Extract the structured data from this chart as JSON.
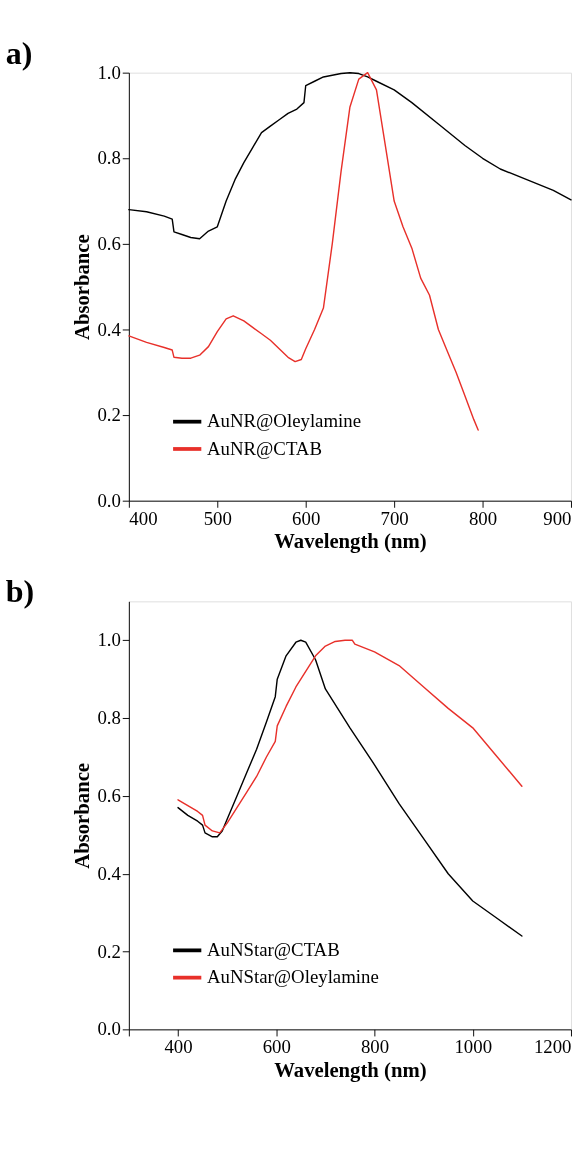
{
  "chart_data": [
    {
      "type": "line",
      "title": "a)",
      "xlabel": "Wavelength (nm)",
      "ylabel": "Absorbance",
      "legend": "bottom",
      "marker": "none",
      "line_style": "solid",
      "grid": false,
      "xlim": [
        400,
        900
      ],
      "xticks": [
        400,
        500,
        600,
        700,
        800,
        900
      ],
      "ylim": [
        0,
        1.0
      ],
      "yticks": [
        {
          "value": 0,
          "label": "0.0"
        },
        {
          "value": 0.2,
          "label": "0.2"
        },
        {
          "value": 0.4,
          "label": "0.4"
        },
        {
          "value": 0.6,
          "label": "0.6"
        },
        {
          "value": 0.8,
          "label": "0.8"
        },
        {
          "value": 1.0,
          "label": "1.0"
        }
      ],
      "series": [
        {
          "name": "AuNR@Oleylamine",
          "color": "#000000",
          "x": [
            400,
            420,
            440,
            449,
            451,
            460,
            470,
            480,
            490,
            500,
            510,
            520,
            530,
            540,
            550,
            560,
            570,
            580,
            590,
            598,
            600,
            610,
            620,
            640,
            650,
            660,
            670,
            680,
            700,
            720,
            750,
            780,
            800,
            820,
            850,
            880,
            900
          ],
          "values": [
            0.68,
            0.675,
            0.665,
            0.658,
            0.628,
            0.622,
            0.615,
            0.612,
            0.63,
            0.64,
            0.7,
            0.75,
            0.79,
            0.825,
            0.86,
            0.875,
            0.89,
            0.905,
            0.915,
            0.93,
            0.97,
            0.98,
            0.99,
            0.998,
            1.0,
            0.998,
            0.99,
            0.98,
            0.96,
            0.93,
            0.88,
            0.83,
            0.8,
            0.775,
            0.75,
            0.725,
            0.703
          ]
        },
        {
          "name": "AuNR@CTAB",
          "color": "#e8302a",
          "x": [
            400,
            420,
            440,
            449,
            451,
            460,
            470,
            480,
            490,
            500,
            510,
            518,
            530,
            540,
            550,
            560,
            570,
            580,
            588,
            595,
            600,
            610,
            620,
            630,
            640,
            650,
            660,
            670,
            680,
            690,
            700,
            710,
            720,
            730,
            740,
            750,
            760,
            770,
            780,
            790,
            795
          ],
          "values": [
            0.385,
            0.37,
            0.358,
            0.352,
            0.335,
            0.333,
            0.333,
            0.34,
            0.36,
            0.395,
            0.425,
            0.432,
            0.42,
            0.405,
            0.39,
            0.375,
            0.355,
            0.335,
            0.325,
            0.33,
            0.355,
            0.4,
            0.45,
            0.6,
            0.77,
            0.92,
            0.985,
            1.0,
            0.96,
            0.83,
            0.7,
            0.64,
            0.59,
            0.52,
            0.48,
            0.4,
            0.35,
            0.3,
            0.245,
            0.19,
            0.165
          ]
        }
      ]
    },
    {
      "type": "line",
      "title": "b)",
      "xlabel": "Wavelength (nm)",
      "ylabel": "Absorbance",
      "legend": "bottom",
      "marker": "none",
      "line_style": "solid",
      "grid": false,
      "xlim": [
        300,
        1200
      ],
      "xticks": [
        {
          "value": 300,
          "label": null
        },
        400,
        600,
        800,
        1000,
        1200
      ],
      "ylim": [
        0,
        1.1
      ],
      "yticks": [
        {
          "value": 0,
          "label": "0.0"
        },
        {
          "value": 0.2,
          "label": "0.2"
        },
        {
          "value": 0.4,
          "label": "0.4"
        },
        {
          "value": 0.6,
          "label": "0.6"
        },
        {
          "value": 0.8,
          "label": "0.8"
        },
        {
          "value": 1.0,
          "label": "1.0"
        }
      ],
      "series": [
        {
          "name": "AuNStar@CTAB",
          "color": "#000000",
          "x": [
            400,
            420,
            440,
            450,
            455,
            470,
            480,
            490,
            500,
            520,
            540,
            560,
            580,
            598,
            602,
            620,
            640,
            650,
            660,
            680,
            700,
            750,
            800,
            850,
            900,
            950,
            1000,
            1050,
            1100
          ],
          "values": [
            0.57,
            0.55,
            0.535,
            0.525,
            0.505,
            0.495,
            0.495,
            0.51,
            0.54,
            0.6,
            0.66,
            0.72,
            0.79,
            0.855,
            0.9,
            0.96,
            0.995,
            1.0,
            0.995,
            0.95,
            0.875,
            0.775,
            0.68,
            0.58,
            0.49,
            0.4,
            0.33,
            0.285,
            0.24
          ]
        },
        {
          "name": "AuNStar@Oleylamine",
          "color": "#e8302a",
          "x": [
            400,
            420,
            440,
            450,
            455,
            470,
            485,
            500,
            520,
            540,
            560,
            580,
            598,
            602,
            620,
            640,
            660,
            680,
            700,
            720,
            740,
            755,
            760,
            800,
            850,
            900,
            950,
            1000,
            1050,
            1100
          ],
          "values": [
            0.59,
            0.575,
            0.56,
            0.55,
            0.525,
            0.51,
            0.505,
            0.53,
            0.57,
            0.61,
            0.65,
            0.7,
            0.74,
            0.78,
            0.83,
            0.88,
            0.92,
            0.96,
            0.985,
            0.997,
            1.0,
            1.0,
            0.99,
            0.97,
            0.935,
            0.88,
            0.825,
            0.775,
            0.7,
            0.625
          ]
        }
      ]
    }
  ]
}
